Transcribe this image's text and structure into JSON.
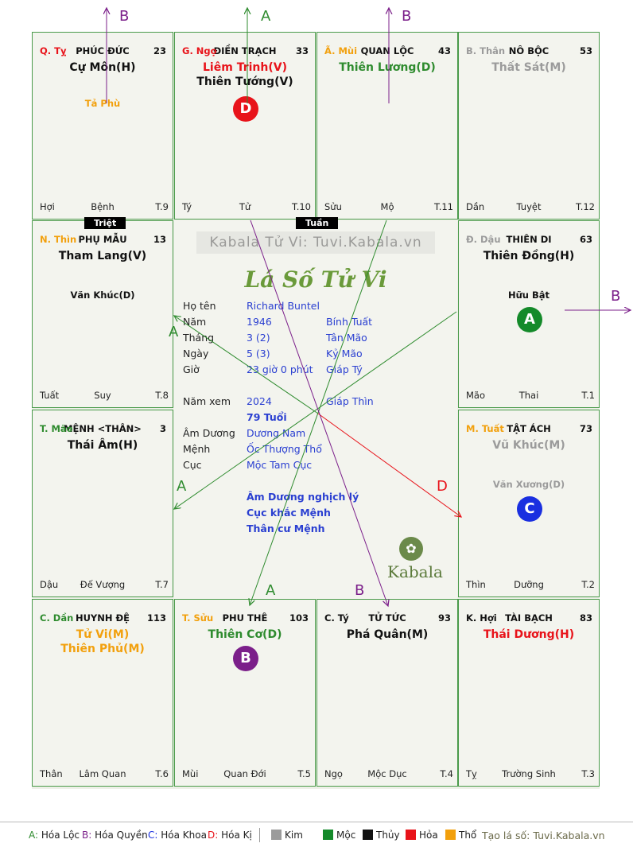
{
  "colors": {
    "green": "#2e8b2e",
    "purple": "#7b1f8a",
    "blue": "#1a2fe0",
    "red": "#e8131a",
    "orange": "#f2a00d",
    "grey": "#9b9b9b",
    "blue_text": "#2a3fd1"
  },
  "palaces": [
    {
      "branch": "Q. Tỵ",
      "branch_color": "#e8131a",
      "name": "PHÚC ĐỨC",
      "age": "23",
      "stars": [
        {
          "text": "Cự Môn(H)",
          "color": "#111111"
        }
      ],
      "minor": [
        {
          "text": "Tả Phù",
          "color": "#f2a00d"
        }
      ],
      "bottom": [
        "Hợi",
        "Bệnh",
        "T.9"
      ]
    },
    {
      "branch": "G. Ngọ",
      "branch_color": "#e8131a",
      "name": "ĐIỀN TRẠCH",
      "age": "33",
      "stars": [
        {
          "text": "Liêm Trinh(V)",
          "color": "#e8131a"
        },
        {
          "text": "Thiên Tướng(V)",
          "color": "#111111"
        }
      ],
      "minor": [],
      "bottom": [
        "Tý",
        "Tử",
        "T.10"
      ]
    },
    {
      "branch": "Ã. Mùi",
      "branch_color": "#f2a00d",
      "name": "QUAN LỘC",
      "age": "43",
      "stars": [
        {
          "text": "Thiên Lương(D)",
          "color": "#2e8b2e"
        }
      ],
      "minor": [],
      "bottom": [
        "Sửu",
        "Mộ",
        "T.11"
      ]
    },
    {
      "branch": "B. Thân",
      "branch_color": "#9b9b9b",
      "name": "NÔ BỘC",
      "age": "53",
      "stars": [
        {
          "text": "Thất Sát(M)",
          "color": "#9b9b9b"
        }
      ],
      "minor": [],
      "bottom": [
        "Dần",
        "Tuyệt",
        "T.12"
      ]
    },
    {
      "branch": "N. Thìn",
      "branch_color": "#f2a00d",
      "name": "PHỤ MẪU",
      "age": "13",
      "stars": [
        {
          "text": "Tham Lang(V)",
          "color": "#111111"
        }
      ],
      "minor": [
        {
          "text": "Văn Khúc(D)",
          "color": "#111111"
        }
      ],
      "bottom": [
        "Tuất",
        "Suy",
        "T.8"
      ]
    },
    {
      "branch": "Đ. Dậu",
      "branch_color": "#9b9b9b",
      "name": "THIÊN DI",
      "age": "63",
      "stars": [
        {
          "text": "Thiên Đồng(H)",
          "color": "#111111"
        }
      ],
      "minor": [
        {
          "text": "Hữu Bật",
          "color": "#111111"
        }
      ],
      "bottom": [
        "Mão",
        "Thai",
        "T.1"
      ]
    },
    {
      "branch": "T. Mão",
      "branch_color": "#2e8b2e",
      "name": "MỆNH <THÂN>",
      "age": "3",
      "stars": [
        {
          "text": "Thái Âm(H)",
          "color": "#111111"
        }
      ],
      "minor": [],
      "bottom": [
        "Dậu",
        "Đế Vượng",
        "T.7"
      ]
    },
    {
      "branch": "M. Tuất",
      "branch_color": "#f2a00d",
      "name": "TẬT ÁCH",
      "age": "73",
      "stars": [
        {
          "text": "Vũ Khúc(M)",
          "color": "#9b9b9b"
        }
      ],
      "minor": [
        {
          "text": "Văn Xương(D)",
          "color": "#9b9b9b"
        }
      ],
      "bottom": [
        "Thìn",
        "Dưỡng",
        "T.2"
      ]
    },
    {
      "branch": "C. Dần",
      "branch_color": "#2e8b2e",
      "name": "HUYNH ĐỆ",
      "age": "113",
      "stars": [
        {
          "text": "Tử Vi(M)",
          "color": "#f2a00d"
        },
        {
          "text": "Thiên Phủ(M)",
          "color": "#f2a00d"
        }
      ],
      "minor": [],
      "bottom": [
        "Thân",
        "Lâm Quan",
        "T.6"
      ]
    },
    {
      "branch": "T. Sửu",
      "branch_color": "#f2a00d",
      "name": "PHU THÊ",
      "age": "103",
      "stars": [
        {
          "text": "Thiên Cơ(D)",
          "color": "#2e8b2e"
        }
      ],
      "minor": [],
      "bottom": [
        "Mùi",
        "Quan Đới",
        "T.5"
      ]
    },
    {
      "branch": "C. Tý",
      "branch_color": "#111111",
      "name": "TỬ TỨC",
      "age": "93",
      "stars": [
        {
          "text": "Phá Quân(M)",
          "color": "#111111"
        }
      ],
      "minor": [],
      "bottom": [
        "Ngọ",
        "Mộc Dục",
        "T.4"
      ]
    },
    {
      "branch": "K. Hợi",
      "branch_color": "#111111",
      "name": "TÀI BẠCH",
      "age": "83",
      "stars": [
        {
          "text": "Thái Dương(H)",
          "color": "#e8131a"
        }
      ],
      "minor": [],
      "bottom": [
        "Tỵ",
        "Trường Sinh",
        "T.3"
      ]
    }
  ],
  "badges": [
    {
      "palace_index": 1,
      "letter": "D",
      "color": "#e8131a"
    },
    {
      "palace_index": 5,
      "letter": "A",
      "color": "#148a2a"
    },
    {
      "palace_index": 7,
      "letter": "C",
      "color": "#1a2fe0"
    },
    {
      "palace_index": 9,
      "letter": "B",
      "color": "#7b1f8a"
    }
  ],
  "markers": {
    "triet": "Triệt",
    "tuan": "Tuần"
  },
  "center": {
    "site_banner": "Kabala Tử Vi: Tuvi.Kabala.vn",
    "title": "Lá Số Tử Vi",
    "rows": [
      {
        "label": "Họ tên",
        "value": "Richard Buntel",
        "extra": ""
      },
      {
        "label": "Năm",
        "value": "1946",
        "extra": "Bính Tuất"
      },
      {
        "label": "Tháng",
        "value": "3  (2)",
        "extra": "Tân Mão"
      },
      {
        "label": "Ngày",
        "value": "5  (3)",
        "extra": "Kỷ Mão"
      },
      {
        "label": "Giờ",
        "value": "23 giờ 0 phút",
        "extra": "Giáp Tý"
      },
      {
        "label": "Năm xem",
        "value": "2024",
        "extra": "Giáp Thìn"
      },
      {
        "label": "",
        "value": "79 Tuổi",
        "extra": ""
      },
      {
        "label": "Âm Dương",
        "value": "Dương Nam",
        "extra": ""
      },
      {
        "label": "Mệnh",
        "value": "Ốc Thượng Thổ",
        "extra": ""
      },
      {
        "label": "Cục",
        "value": "Mộc Tam Cục",
        "extra": ""
      }
    ],
    "notes": [
      "Âm Dương nghịch lý",
      "Cục khắc Mệnh",
      "Thân cư Mệnh"
    ],
    "brand": "Kabala"
  },
  "arrows": {
    "labels": [
      {
        "text": "B",
        "color": "#7b1f8a"
      },
      {
        "text": "A",
        "color": "#2e8b2e"
      },
      {
        "text": "B",
        "color": "#7b1f8a"
      },
      {
        "text": "B",
        "color": "#7b1f8a"
      },
      {
        "text": "A",
        "color": "#2e8b2e"
      },
      {
        "text": "A",
        "color": "#2e8b2e"
      },
      {
        "text": "D",
        "color": "#e8131a"
      },
      {
        "text": "A",
        "color": "#2e8b2e"
      },
      {
        "text": "B",
        "color": "#7b1f8a"
      }
    ]
  },
  "legend": {
    "items": [
      {
        "key": "A:",
        "text": "Hóa Lộc",
        "color": "#2e8b2e"
      },
      {
        "key": "B:",
        "text": "Hóa Quyền",
        "color": "#7b1f8a"
      },
      {
        "key": "C:",
        "text": "Hóa Khoa",
        "color": "#1a2fe0"
      },
      {
        "key": "D:",
        "text": "Hóa Kị",
        "color": "#e8131a"
      }
    ],
    "elements": [
      {
        "text": "Kim",
        "color": "#9b9b9b"
      },
      {
        "text": "Mộc",
        "color": "#148a2a"
      },
      {
        "text": "Thủy",
        "color": "#111111"
      },
      {
        "text": "Hỏa",
        "color": "#e8131a"
      },
      {
        "text": "Thổ",
        "color": "#f2a00d"
      }
    ],
    "credit": "Tạo lá số: Tuvi.Kabala.vn"
  }
}
